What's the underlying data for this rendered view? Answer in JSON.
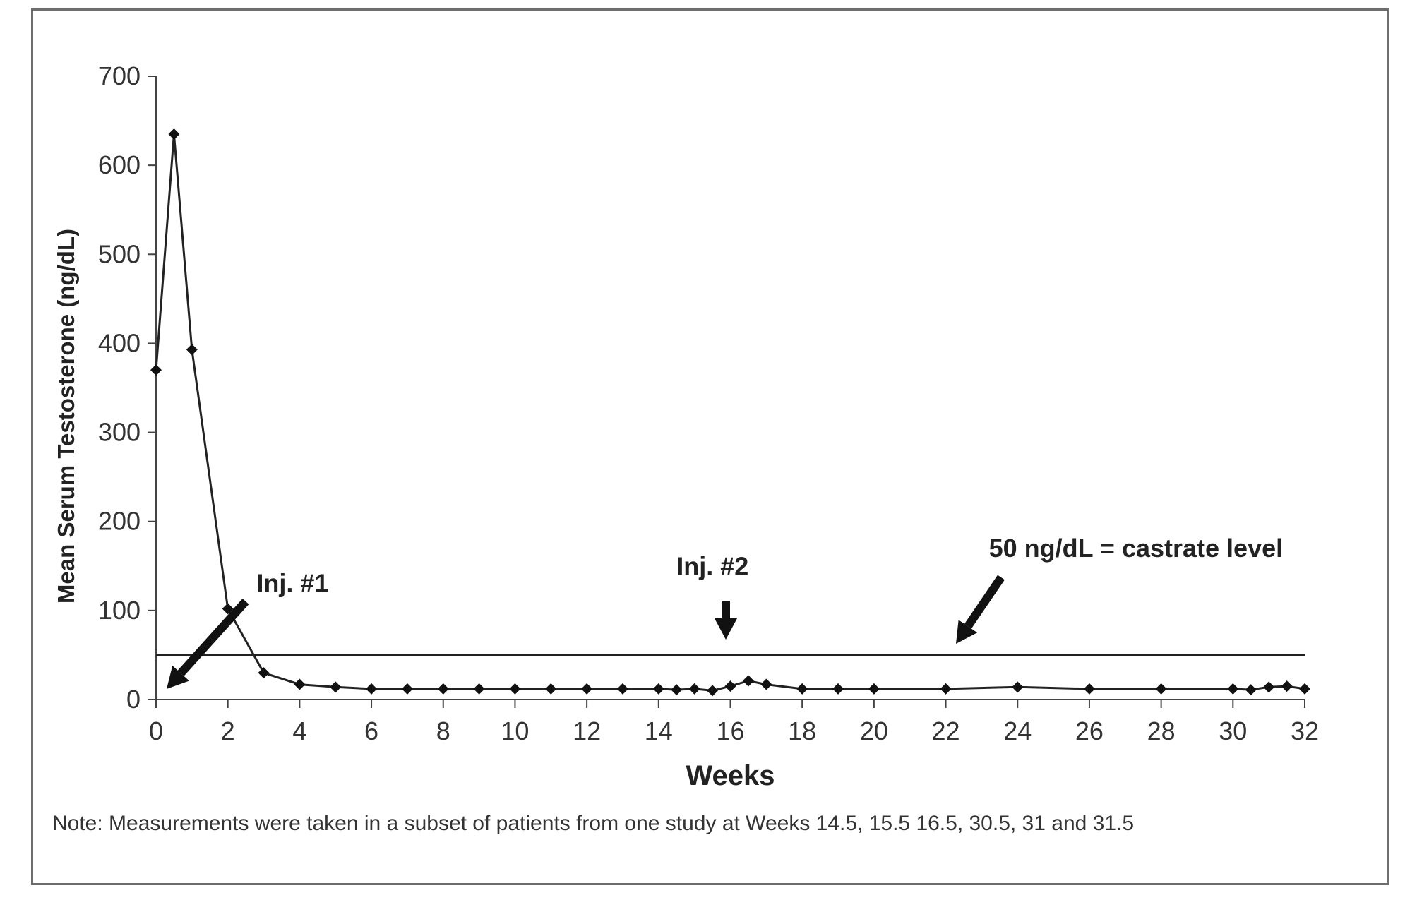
{
  "chart_data": {
    "type": "line",
    "ylabel": "Mean Serum Testosterone (ng/dL)",
    "xlabel": "Weeks",
    "xlim": [
      0,
      32
    ],
    "ylim": [
      0,
      700
    ],
    "x_ticks": [
      0,
      2,
      4,
      6,
      8,
      10,
      12,
      14,
      16,
      18,
      20,
      22,
      24,
      26,
      28,
      30,
      32
    ],
    "y_ticks": [
      0,
      100,
      200,
      300,
      400,
      500,
      600,
      700
    ],
    "grid": false,
    "series": [
      {
        "x": [
          0,
          0.5,
          1,
          2,
          3,
          4,
          5,
          6,
          7,
          8,
          9,
          10,
          11,
          12,
          13,
          14,
          14.5,
          15,
          15.5,
          16,
          16.5,
          17,
          18,
          19,
          20,
          22,
          24,
          26,
          28,
          30,
          30.5,
          31,
          31.5,
          32
        ],
        "y": [
          370,
          635,
          393,
          102,
          30,
          17,
          14,
          12,
          12,
          12,
          12,
          12,
          12,
          12,
          12,
          12,
          11,
          12,
          10,
          15,
          21,
          17,
          12,
          12,
          12,
          12,
          14,
          12,
          12,
          12,
          11,
          14,
          15,
          12
        ]
      }
    ],
    "reference_line": {
      "y": 50
    },
    "annotations": [
      {
        "text": "Inj. #1",
        "x": 2.8,
        "y": 121
      },
      {
        "text": "Inj. #2",
        "x": 14.5,
        "y": 140
      },
      {
        "text": "50 ng/dL = castrate level",
        "x": 23.2,
        "y": 160
      }
    ],
    "note": "Note: Measurements were taken in a subset of patients from one study at Weeks 14.5, 15.5 16.5, 30.5, 31 and 31.5",
    "colors": {
      "line": "#222222",
      "marker": "#111111",
      "arrow": "#111111",
      "frame": "#6e6e6e"
    }
  }
}
